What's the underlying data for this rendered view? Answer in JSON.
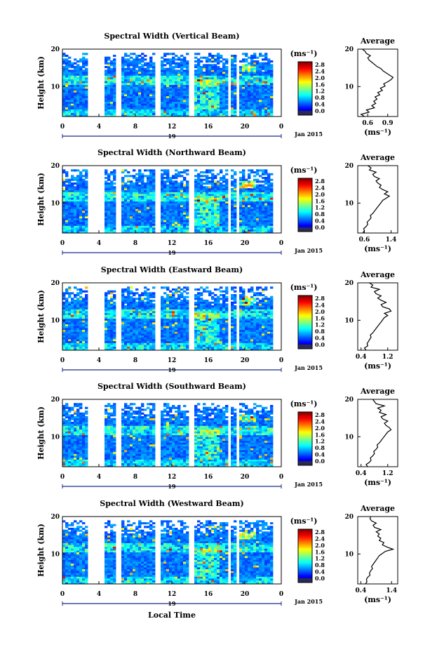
{
  "figure": {
    "date_label": "Jan 2015",
    "day_label": "19",
    "xlabel_bottom": "Local Time",
    "ylabel": "Height (km)",
    "unit_label": "(ms⁻¹)",
    "avg_title": "Average",
    "colorbar_ticks": [
      "0.0",
      "0.4",
      "0.8",
      "1.2",
      "1.6",
      "2.0",
      "2.4",
      "2.8"
    ]
  },
  "chart_data": [
    {
      "type": "heatmap",
      "title": "Spectral Width (Vertical Beam)",
      "xlabel": "",
      "ylabel": "Height (km)",
      "xlim": [
        0,
        24
      ],
      "ylim": [
        2,
        20
      ],
      "xticks": [
        "0",
        "4",
        "8",
        "12",
        "16",
        "20",
        "0"
      ],
      "yticks": [
        "20",
        "10"
      ],
      "colorbar": {
        "label": "(ms⁻¹)",
        "range": [
          0.0,
          2.8
        ]
      },
      "average": {
        "title": "Average",
        "xlabel": "(ms⁻¹)",
        "xticks": [
          "0.6",
          "0.9"
        ],
        "xlim": [
          0.45,
          1.05
        ],
        "yticks": [
          "20",
          "10"
        ],
        "profile": [
          0.55,
          0.5,
          0.62,
          0.58,
          0.7,
          0.66,
          0.72,
          0.69,
          0.74,
          0.71,
          0.78,
          0.75,
          0.82,
          0.79,
          0.86,
          0.84,
          0.9,
          0.95,
          0.98,
          0.93,
          0.88,
          0.83,
          0.8,
          0.74,
          0.7,
          0.66,
          0.62,
          0.6,
          0.64,
          0.58,
          0.56,
          0.52
        ]
      }
    },
    {
      "type": "heatmap",
      "title": "Spectral Width (Northward Beam)",
      "xlabel": "",
      "ylabel": "Height (km)",
      "xlim": [
        0,
        24
      ],
      "ylim": [
        2,
        20
      ],
      "xticks": [
        "0",
        "4",
        "8",
        "12",
        "16",
        "20",
        "0"
      ],
      "yticks": [
        "20",
        "10"
      ],
      "colorbar": {
        "label": "(ms⁻¹)",
        "range": [
          0.0,
          2.8
        ]
      },
      "average": {
        "title": "Average",
        "xlabel": "(ms⁻¹)",
        "xticks": [
          "0.6",
          "1.4"
        ],
        "xlim": [
          0.4,
          1.6
        ],
        "yticks": [
          "20",
          "10"
        ],
        "profile": [
          0.55,
          0.6,
          0.58,
          0.65,
          0.7,
          0.68,
          0.75,
          0.8,
          0.78,
          0.85,
          0.9,
          0.95,
          1.0,
          1.05,
          1.1,
          1.15,
          1.25,
          1.35,
          1.2,
          1.3,
          1.15,
          1.05,
          1.1,
          1.0,
          0.95,
          1.05,
          0.9,
          0.85,
          0.95,
          0.75,
          0.8,
          0.7
        ]
      }
    },
    {
      "type": "heatmap",
      "title": "Spectral Width (Eastward Beam)",
      "xlabel": "",
      "ylabel": "Height (km)",
      "xlim": [
        0,
        24
      ],
      "ylim": [
        2,
        20
      ],
      "xticks": [
        "0",
        "4",
        "8",
        "12",
        "16",
        "20",
        "0"
      ],
      "yticks": [
        "20",
        "10"
      ],
      "colorbar": {
        "label": "(ms⁻¹)",
        "range": [
          0.0,
          2.8
        ]
      },
      "average": {
        "title": "Average",
        "xlabel": "(ms⁻¹)",
        "xticks": [
          "0.4",
          "1.2"
        ],
        "xlim": [
          0.3,
          1.5
        ],
        "yticks": [
          "20",
          "10"
        ],
        "profile": [
          0.55,
          0.5,
          0.6,
          0.58,
          0.62,
          0.66,
          0.7,
          0.68,
          0.75,
          0.8,
          0.85,
          0.9,
          0.95,
          1.0,
          1.05,
          1.1,
          1.2,
          1.1,
          1.3,
          1.25,
          1.05,
          1.0,
          1.15,
          1.0,
          0.9,
          1.0,
          0.85,
          0.8,
          0.95,
          0.7,
          0.75,
          0.65
        ]
      }
    },
    {
      "type": "heatmap",
      "title": "Spectral Width (Southward Beam)",
      "xlabel": "",
      "ylabel": "Height (km)",
      "xlim": [
        0,
        24
      ],
      "ylim": [
        2,
        20
      ],
      "xticks": [
        "0",
        "4",
        "8",
        "12",
        "16",
        "20",
        "0"
      ],
      "yticks": [
        "20",
        "10"
      ],
      "colorbar": {
        "label": "(ms⁻¹)",
        "range": [
          0.0,
          2.8
        ]
      },
      "average": {
        "title": "Average",
        "xlabel": "(ms⁻¹)",
        "xticks": [
          "0.4",
          "1.2"
        ],
        "xlim": [
          0.3,
          1.5
        ],
        "yticks": [
          "20",
          "10"
        ],
        "profile": [
          0.6,
          0.55,
          0.65,
          0.7,
          0.68,
          0.75,
          0.8,
          0.78,
          0.85,
          0.9,
          0.88,
          0.95,
          1.0,
          1.05,
          1.1,
          1.15,
          1.2,
          1.3,
          1.25,
          1.15,
          1.1,
          1.2,
          1.05,
          1.0,
          1.15,
          0.95,
          1.0,
          0.9,
          1.1,
          0.85,
          0.8,
          0.75
        ]
      }
    },
    {
      "type": "heatmap",
      "title": "Spectral Width (Westward Beam)",
      "xlabel": "Local Time",
      "ylabel": "Height (km)",
      "xlim": [
        0,
        24
      ],
      "ylim": [
        2,
        20
      ],
      "xticks": [
        "0",
        "4",
        "8",
        "12",
        "16",
        "20",
        "0"
      ],
      "yticks": [
        "20",
        "10"
      ],
      "colorbar": {
        "label": "(ms⁻¹)",
        "range": [
          0.0,
          2.8
        ]
      },
      "average": {
        "title": "Average",
        "xlabel": "(ms⁻¹)",
        "xticks": [
          "0.4",
          "1.4"
        ],
        "xlim": [
          0.3,
          1.6
        ],
        "yticks": [
          "20",
          "10"
        ],
        "profile": [
          0.55,
          0.6,
          0.58,
          0.62,
          0.7,
          0.68,
          0.72,
          0.78,
          0.75,
          0.8,
          0.85,
          0.9,
          0.95,
          1.0,
          1.1,
          1.2,
          1.45,
          1.25,
          1.1,
          1.15,
          1.0,
          1.05,
          0.95,
          1.0,
          0.9,
          1.05,
          0.85,
          0.8,
          0.9,
          0.75,
          0.7,
          0.72
        ]
      }
    }
  ]
}
